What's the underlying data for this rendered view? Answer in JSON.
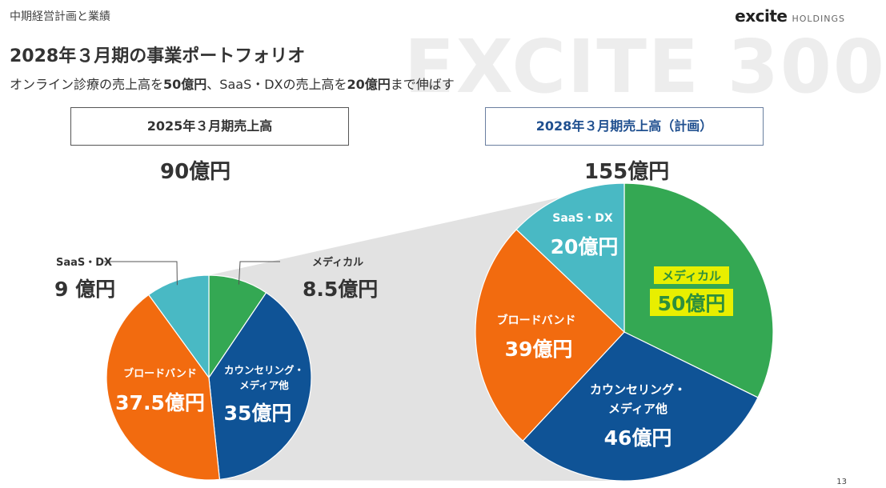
{
  "header": {
    "section": "中期経営計画と業績",
    "logo_main": "excite",
    "logo_sub": "HOLDINGS",
    "watermark": "EXCITE 300"
  },
  "title": "2028年３月期の事業ポートフォリオ",
  "subtitle": {
    "p1": "オンライン診療の売上高を",
    "b1": "50億円",
    "p2": "、SaaS・DXの売上高を",
    "b2": "20億円",
    "p3": "まで伸ばす"
  },
  "left": {
    "header": "2025年３月期売上高",
    "total": "90億円"
  },
  "right": {
    "header": "2028年３月期売上高（計画）",
    "total": "155億円"
  },
  "colors": {
    "medical": "#34a853",
    "counseling": "#0f5396",
    "broadband": "#f26b0f",
    "saas": "#49b9c4",
    "highlight": "#e8ef00"
  },
  "chart_data": [
    {
      "type": "pie",
      "title": "2025年３月期売上高",
      "total_label": "90億円",
      "slices": [
        {
          "name": "メディカル",
          "value": 8.5,
          "label": "8.5億円"
        },
        {
          "name": "カウンセリング・メディア他",
          "value": 35,
          "label": "35億円"
        },
        {
          "name": "ブロードバンド",
          "value": 37.5,
          "label": "37.5億円"
        },
        {
          "name": "SaaS・DX",
          "value": 9,
          "label": "9 億円"
        }
      ]
    },
    {
      "type": "pie",
      "title": "2028年３月期売上高（計画）",
      "total_label": "155億円",
      "slices": [
        {
          "name": "メディカル",
          "value": 50,
          "label": "50億円"
        },
        {
          "name": "カウンセリング・メディア他",
          "value": 46,
          "label": "46億円"
        },
        {
          "name": "ブロードバンド",
          "value": 39,
          "label": "39億円"
        },
        {
          "name": "SaaS・DX",
          "value": 20,
          "label": "20億円"
        }
      ]
    }
  ],
  "page_number": "13"
}
